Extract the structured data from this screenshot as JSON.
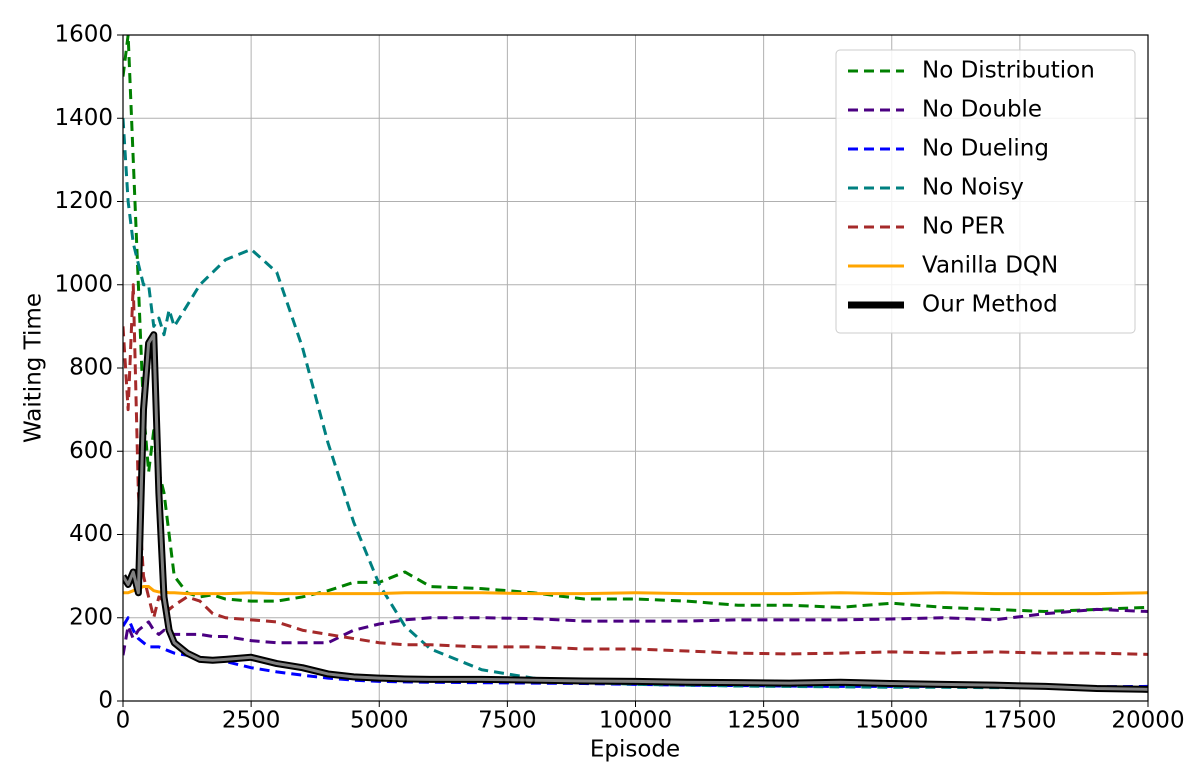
{
  "chart_data": {
    "type": "line",
    "x_label": "Episode",
    "y_label": "Waiting Time",
    "xlim": [
      0,
      20000
    ],
    "ylim": [
      0,
      1600
    ],
    "xticks": [
      0,
      2500,
      5000,
      7500,
      10000,
      12500,
      15000,
      17500,
      20000
    ],
    "yticks": [
      0,
      200,
      400,
      600,
      800,
      1000,
      1200,
      1400,
      1600
    ],
    "grid": true,
    "legend": "upper right",
    "x": [
      0,
      100,
      200,
      300,
      400,
      500,
      600,
      700,
      800,
      900,
      1000,
      1250,
      1500,
      1750,
      2000,
      2500,
      3000,
      3500,
      4000,
      4500,
      5000,
      5500,
      6000,
      7000,
      8000,
      9000,
      10000,
      11000,
      12000,
      13000,
      14000,
      15000,
      16000,
      17000,
      18000,
      19000,
      20000
    ],
    "series": [
      {
        "name": "No Distribution",
        "color": "#008000",
        "style": "dashed",
        "values": [
          1500,
          1600,
          1300,
          1000,
          700,
          550,
          650,
          550,
          500,
          400,
          300,
          260,
          250,
          255,
          245,
          240,
          240,
          250,
          265,
          285,
          285,
          310,
          275,
          270,
          260,
          245,
          245,
          240,
          230,
          230,
          225,
          235,
          225,
          220,
          215,
          220,
          225
        ]
      },
      {
        "name": "No Double",
        "color": "#4b0082",
        "style": "dashed",
        "values": [
          110,
          180,
          150,
          170,
          180,
          190,
          170,
          160,
          170,
          165,
          160,
          160,
          160,
          155,
          155,
          145,
          140,
          140,
          140,
          170,
          185,
          195,
          200,
          200,
          198,
          192,
          192,
          192,
          195,
          195,
          195,
          197,
          200,
          195,
          210,
          220,
          215
        ]
      },
      {
        "name": "No Dueling",
        "color": "#0000ff",
        "style": "dashed",
        "values": [
          180,
          200,
          170,
          150,
          140,
          130,
          130,
          130,
          125,
          120,
          115,
          110,
          105,
          100,
          95,
          80,
          70,
          62,
          55,
          50,
          47,
          46,
          45,
          44,
          43,
          42,
          40,
          38,
          37,
          36,
          35,
          35,
          35,
          35,
          34,
          34,
          35
        ]
      },
      {
        "name": "No Noisy",
        "color": "#008080",
        "style": "dashed",
        "values": [
          1400,
          1200,
          1100,
          1050,
          1000,
          1000,
          900,
          920,
          880,
          940,
          900,
          950,
          1000,
          1030,
          1060,
          1085,
          1030,
          850,
          620,
          430,
          280,
          180,
          125,
          75,
          55,
          45,
          40,
          38,
          36,
          35,
          34,
          33,
          33,
          32,
          32,
          32,
          32
        ]
      },
      {
        "name": "No PER",
        "color": "#a52a2a",
        "style": "dashed",
        "values": [
          900,
          700,
          1000,
          500,
          300,
          250,
          200,
          250,
          240,
          220,
          230,
          250,
          240,
          210,
          200,
          195,
          190,
          170,
          160,
          150,
          140,
          135,
          135,
          130,
          130,
          125,
          125,
          120,
          115,
          113,
          115,
          118,
          115,
          118,
          115,
          115,
          112
        ]
      },
      {
        "name": "Vanilla DQN",
        "color": "#ffa500",
        "style": "solid",
        "values": [
          260,
          260,
          265,
          270,
          275,
          275,
          265,
          262,
          262,
          260,
          260,
          258,
          258,
          258,
          258,
          260,
          258,
          258,
          258,
          258,
          258,
          260,
          260,
          260,
          258,
          258,
          260,
          258,
          258,
          258,
          260,
          258,
          260,
          258,
          258,
          258,
          260
        ]
      },
      {
        "name": "Our Method",
        "color": "#000000",
        "style": "bold",
        "values": [
          300,
          280,
          310,
          260,
          700,
          860,
          880,
          500,
          250,
          170,
          140,
          115,
          100,
          98,
          100,
          105,
          90,
          80,
          65,
          58,
          55,
          53,
          52,
          52,
          50,
          48,
          47,
          45,
          44,
          43,
          45,
          42,
          40,
          38,
          35,
          30,
          28
        ]
      }
    ]
  }
}
